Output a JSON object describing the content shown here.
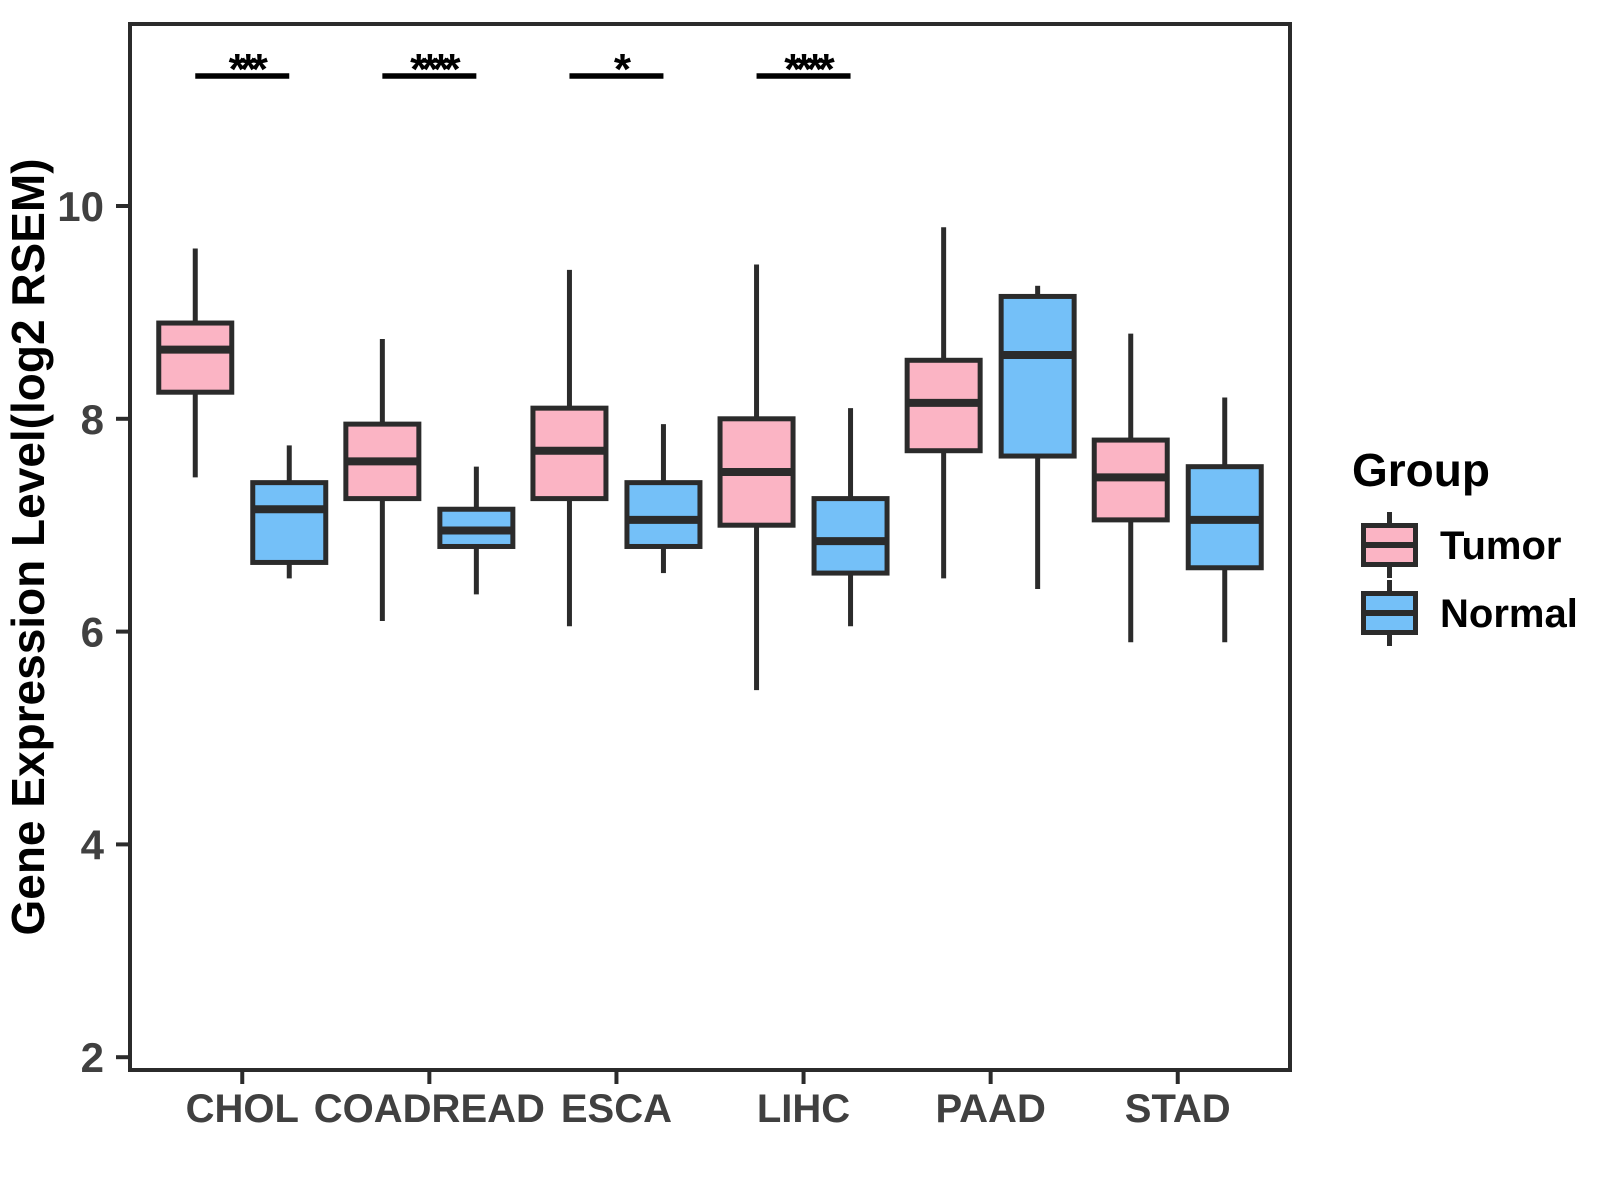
{
  "figure": {
    "background": "#ffffff"
  },
  "chart_data": {
    "type": "boxplot",
    "title": "",
    "xlabel": "",
    "ylabel": "Gene Expression Level(log2 RSEM)",
    "categories": [
      "CHOL",
      "COADREAD",
      "ESCA",
      "LIHC",
      "PAAD",
      "STAD"
    ],
    "yticks": [
      2,
      4,
      6,
      8,
      10
    ],
    "ylim": [
      1.8,
      11.8
    ],
    "grid": false,
    "panel_border": true,
    "colors": {
      "line": "#2b2b2b",
      "axis_text": "#404040",
      "annotation": "#000000",
      "tumor_fill": "#FBB4C4",
      "normal_fill": "#74C0F8"
    },
    "legend": {
      "title": "Group",
      "position": "right",
      "entries": [
        {
          "label": "Tumor",
          "color": "#FBB4C4"
        },
        {
          "label": "Normal",
          "color": "#74C0F8"
        }
      ]
    },
    "series": [
      {
        "name": "Tumor",
        "color": "#FBB4C4",
        "boxes": [
          {
            "category": "CHOL",
            "min": 7.45,
            "q1": 8.25,
            "median": 8.65,
            "q3": 8.9,
            "max": 9.6
          },
          {
            "category": "COADREAD",
            "min": 6.1,
            "q1": 7.25,
            "median": 7.6,
            "q3": 7.95,
            "max": 8.75
          },
          {
            "category": "ESCA",
            "min": 6.05,
            "q1": 7.25,
            "median": 7.7,
            "q3": 8.1,
            "max": 9.4
          },
          {
            "category": "LIHC",
            "min": 5.45,
            "q1": 7.0,
            "median": 7.5,
            "q3": 8.0,
            "max": 9.45
          },
          {
            "category": "PAAD",
            "min": 6.5,
            "q1": 7.7,
            "median": 8.15,
            "q3": 8.55,
            "max": 9.8
          },
          {
            "category": "STAD",
            "min": 5.9,
            "q1": 7.05,
            "median": 7.45,
            "q3": 7.8,
            "max": 8.8
          }
        ]
      },
      {
        "name": "Normal",
        "color": "#74C0F8",
        "boxes": [
          {
            "category": "CHOL",
            "min": 6.5,
            "q1": 6.65,
            "median": 7.15,
            "q3": 7.4,
            "max": 7.75
          },
          {
            "category": "COADREAD",
            "min": 6.35,
            "q1": 6.8,
            "median": 6.95,
            "q3": 7.15,
            "max": 7.55
          },
          {
            "category": "ESCA",
            "min": 6.55,
            "q1": 6.8,
            "median": 7.05,
            "q3": 7.4,
            "max": 7.95
          },
          {
            "category": "LIHC",
            "min": 6.05,
            "q1": 6.55,
            "median": 6.85,
            "q3": 7.25,
            "max": 8.1
          },
          {
            "category": "PAAD",
            "min": 6.4,
            "q1": 7.65,
            "median": 8.6,
            "q3": 9.15,
            "max": 9.25
          },
          {
            "category": "STAD",
            "min": 5.9,
            "q1": 6.6,
            "median": 7.05,
            "q3": 7.55,
            "max": 8.2
          }
        ]
      }
    ],
    "significance": [
      {
        "category": "CHOL",
        "label": "***"
      },
      {
        "category": "COADREAD",
        "label": "****"
      },
      {
        "category": "ESCA",
        "label": "*"
      },
      {
        "category": "LIHC",
        "label": "****"
      }
    ]
  }
}
